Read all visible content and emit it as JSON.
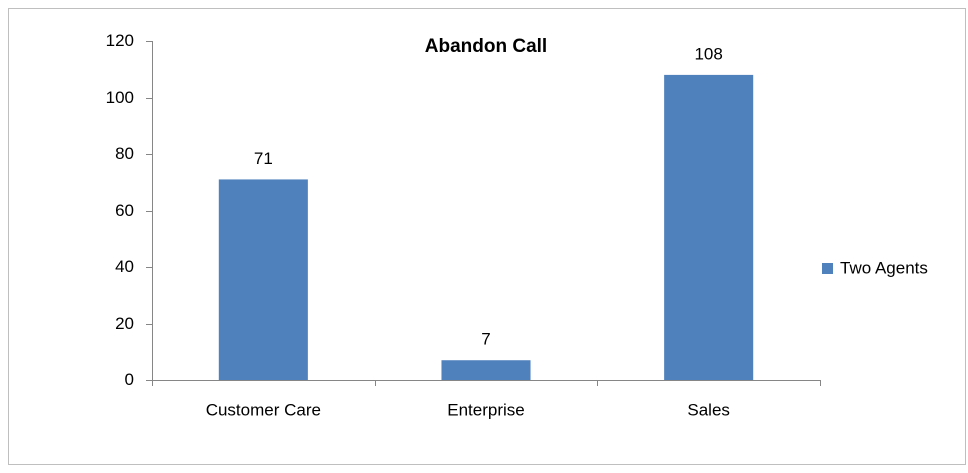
{
  "chart_data": {
    "type": "bar",
    "title": "Abandon Call",
    "categories": [
      "Customer Care",
      "Enterprise",
      "Sales"
    ],
    "series": [
      {
        "name": "Two Agents",
        "color": "#4f81bd",
        "values": [
          71,
          7,
          108
        ]
      }
    ],
    "ylim": [
      0,
      120
    ],
    "yticks": [
      0,
      20,
      40,
      60,
      80,
      100,
      120
    ],
    "grid": false,
    "legend": "right"
  }
}
